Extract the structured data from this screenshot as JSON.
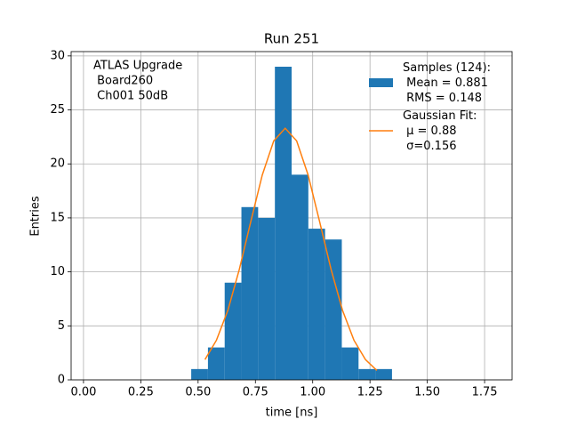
{
  "chart_data": {
    "type": "histogram",
    "title": "Run 251",
    "xlabel": "time [ns]",
    "ylabel": "Entries",
    "annotation": [
      "ATLAS Upgrade",
      " Board260",
      " Ch001 50dB"
    ],
    "xlim": [
      -0.054,
      1.87
    ],
    "ylim": [
      0,
      30.4
    ],
    "xticks": [
      {
        "value": 0,
        "label": "0.00"
      },
      {
        "value": 0.25,
        "label": "0.25"
      },
      {
        "value": 0.5,
        "label": "0.50"
      },
      {
        "value": 0.75,
        "label": "0.75"
      },
      {
        "value": 1,
        "label": "1.00"
      },
      {
        "value": 1.25,
        "label": "1.25"
      },
      {
        "value": 1.5,
        "label": "1.50"
      },
      {
        "value": 1.75,
        "label": "1.75"
      }
    ],
    "yticks": [
      0,
      5,
      10,
      15,
      20,
      25,
      30
    ],
    "grid": true,
    "legend": "upper right",
    "series": [
      {
        "type": "histogram",
        "name": "Samples (124):\n Mean = 0.881\n RMS = 0.148",
        "color": "#1f77b4",
        "bins": [
          0.47,
          0.543,
          0.616,
          0.689,
          0.762,
          0.835,
          0.908,
          0.981,
          1.054,
          1.127,
          1.2,
          1.273,
          1.346
        ],
        "values": [
          1,
          3,
          9,
          16,
          15,
          29,
          19,
          14,
          13,
          3,
          1,
          1
        ]
      },
      {
        "type": "line",
        "name": "Gaussian Fit:\n μ = 0.88\n σ=0.156",
        "color": "#ff7f0e",
        "x": [
          0.53,
          0.58,
          0.63,
          0.68,
          0.73,
          0.78,
          0.83,
          0.88,
          0.93,
          0.98,
          1.03,
          1.08,
          1.13,
          1.18,
          1.23,
          1.28
        ],
        "values": [
          1.88,
          3.67,
          6.45,
          10.24,
          14.67,
          18.97,
          22.13,
          23.3,
          22.13,
          18.97,
          14.67,
          10.24,
          6.45,
          3.67,
          1.88,
          0.87
        ]
      }
    ]
  }
}
